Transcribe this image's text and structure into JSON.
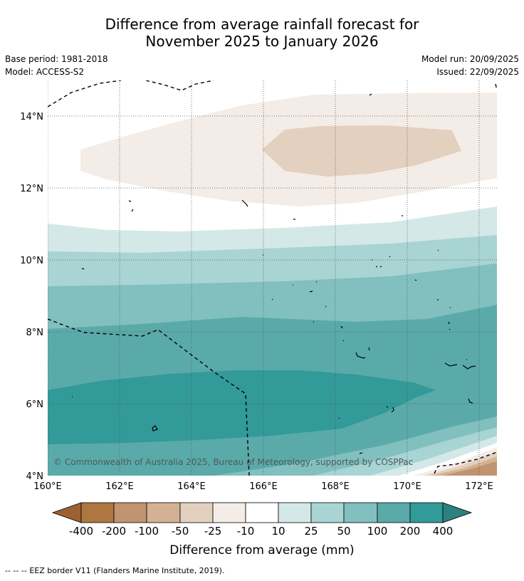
{
  "title": {
    "line1": "Difference from average rainfall forecast for",
    "line2": "November 2025 to January 2026"
  },
  "meta": {
    "base_period": "Base period: 1981-2018",
    "model": "Model: ACCESS-S2",
    "model_run": "Model run: 20/09/2025",
    "issued": "Issued: 22/09/2025"
  },
  "map": {
    "y_ticks": [
      "14°N",
      "12°N",
      "10°N",
      "8°N",
      "6°N",
      "4°N"
    ],
    "x_ticks": [
      "160°E",
      "162°E",
      "164°E",
      "166°E",
      "168°E",
      "170°E",
      "172°E"
    ],
    "copyright": "© Commonwealth of Australia 2025, Bureau of Meteorology, supported by COSPPac"
  },
  "legend": {
    "ticks": [
      "-400",
      "-200",
      "-100",
      "-50",
      "-25",
      "-10",
      "10",
      "25",
      "50",
      "100",
      "200",
      "400"
    ],
    "colors": {
      "lt_neg400": "#9c6132",
      "n400_200": "#ae7641",
      "n200_100": "#c09470",
      "n100_50": "#d3b293",
      "n50_25": "#e3d0be",
      "n25_10": "#f4ece6",
      "n10_p10": "#ffffff",
      "p10_25": "#d4e8e8",
      "p25_50": "#a9d4d4",
      "p50_100": "#82bfbf",
      "p100_200": "#5aaaaa",
      "p200_400": "#329a98",
      "gt_400": "#2b8180"
    },
    "label": "Difference from average (mm)"
  },
  "footer": {
    "eez_symbol": "-- -- --",
    "eez_text": "EEZ border V11 (Flanders Marine Institute, 2019)."
  }
}
